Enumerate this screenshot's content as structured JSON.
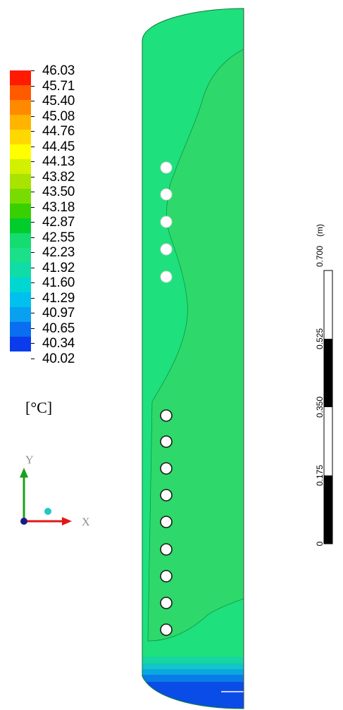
{
  "legend": {
    "labels": [
      "46.03",
      "45.71",
      "45.40",
      "45.08",
      "44.76",
      "44.45",
      "44.13",
      "43.82",
      "43.50",
      "43.18",
      "42.87",
      "42.55",
      "42.23",
      "41.92",
      "41.60",
      "41.29",
      "40.97",
      "40.65",
      "40.34",
      "40.02"
    ],
    "colors": [
      "#ff1a00",
      "#ff5a00",
      "#ff8a00",
      "#ffb400",
      "#ffd800",
      "#ffff00",
      "#d2f000",
      "#a8e400",
      "#78dc00",
      "#38d000",
      "#00cc2c",
      "#14dc6e",
      "#1ae08a",
      "#10dca8",
      "#00d6d2",
      "#00c0ee",
      "#0aa0f0",
      "#0a6ef0",
      "#0a3cec",
      "#0018e0"
    ],
    "unit": "[°C]"
  },
  "axes": {
    "x_label": "X",
    "y_label": "Y"
  },
  "scale_bar": {
    "unit": "(m)",
    "labels": [
      "0",
      "0.175",
      "0.350",
      "0.525",
      "0.700"
    ]
  },
  "contour_colors": {
    "main_fill": "#1ee07c",
    "inner_fill": "#2ed86a",
    "bottom_bands": [
      "#18d6a0",
      "#10c6c8",
      "#0aa8e0",
      "#0a7ce8",
      "#0a4ce8"
    ]
  }
}
